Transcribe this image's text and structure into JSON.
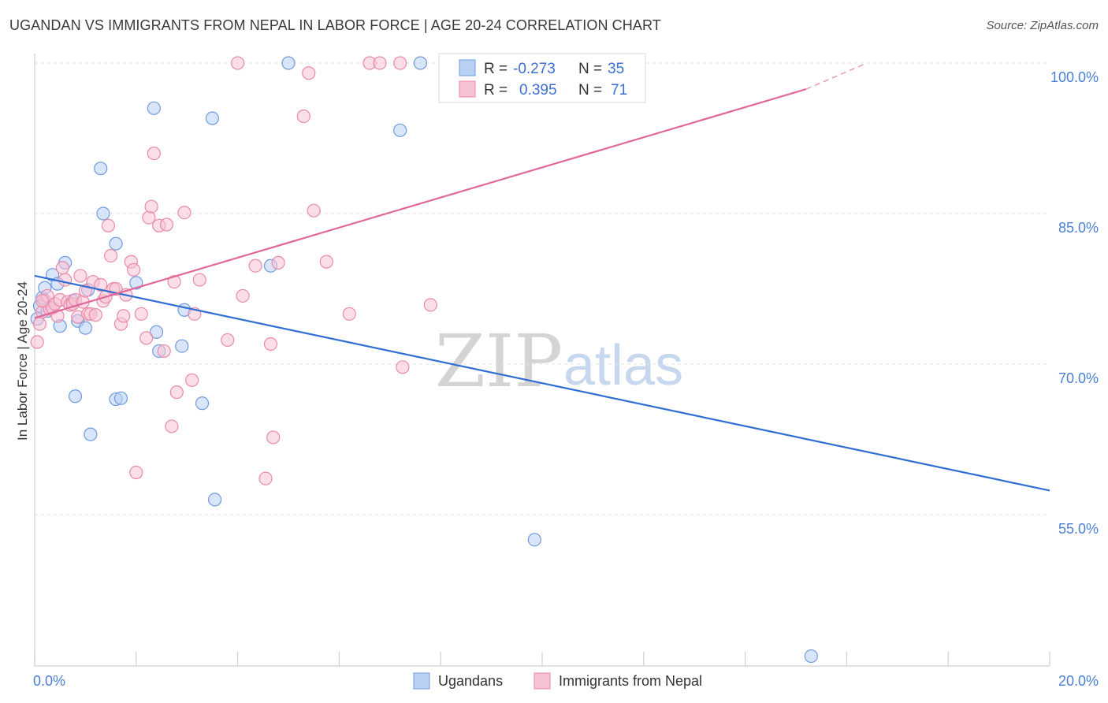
{
  "title": "UGANDAN VS IMMIGRANTS FROM NEPAL IN LABOR FORCE | AGE 20-24 CORRELATION CHART",
  "source": "Source: ZipAtlas.com",
  "watermark": {
    "zip": "ZIP",
    "atlas": "atlas"
  },
  "chart_data": {
    "type": "scatter",
    "title": "UGANDAN VS IMMIGRANTS FROM NEPAL IN LABOR FORCE | AGE 20-24 CORRELATION CHART",
    "xlabel": "",
    "ylabel": "In Labor Force | Age 20-24",
    "xlim": [
      0,
      20
    ],
    "ylim": [
      40,
      101.5
    ],
    "x_tick_labels": [
      {
        "value": 0,
        "label": "0.0%"
      },
      {
        "value": 20,
        "label": "20.0%"
      }
    ],
    "y_tick_labels": [
      {
        "value": 100,
        "label": "100.0%"
      },
      {
        "value": 85,
        "label": "85.0%"
      },
      {
        "value": 70,
        "label": "70.0%"
      },
      {
        "value": 55,
        "label": "55.0%"
      }
    ],
    "grid": true,
    "legend_position": "top-center",
    "series": [
      {
        "name": "Ugandans",
        "color": "#6f9be0",
        "fill": "#b9d0f2",
        "R": "-0.273",
        "N": "35",
        "trend": {
          "x0": 0,
          "y0": 78.8,
          "x1": 20,
          "y1": 57.4
        },
        "points": [
          [
            0.05,
            74.5
          ],
          [
            0.1,
            75.8
          ],
          [
            0.15,
            76.6
          ],
          [
            0.2,
            77.6
          ],
          [
            0.25,
            75.3
          ],
          [
            0.35,
            78.9
          ],
          [
            0.45,
            78.0
          ],
          [
            0.5,
            73.8
          ],
          [
            0.6,
            80.1
          ],
          [
            0.75,
            76.3
          ],
          [
            0.85,
            74.3
          ],
          [
            1.0,
            73.6
          ],
          [
            1.05,
            77.4
          ],
          [
            1.1,
            63.0
          ],
          [
            1.3,
            89.5
          ],
          [
            1.35,
            85.0
          ],
          [
            1.6,
            82.0
          ],
          [
            1.6,
            66.5
          ],
          [
            1.7,
            66.6
          ],
          [
            2.0,
            78.1
          ],
          [
            2.35,
            95.5
          ],
          [
            2.4,
            73.2
          ],
          [
            2.45,
            71.3
          ],
          [
            2.9,
            71.8
          ],
          [
            2.95,
            75.4
          ],
          [
            3.3,
            66.1
          ],
          [
            3.5,
            94.5
          ],
          [
            3.55,
            56.5
          ],
          [
            4.65,
            79.8
          ],
          [
            5.0,
            100.0
          ],
          [
            7.2,
            93.3
          ],
          [
            7.6,
            100.0
          ],
          [
            0.8,
            66.8
          ],
          [
            9.85,
            52.5
          ],
          [
            15.3,
            40.9
          ]
        ]
      },
      {
        "name": "Immigrants from Nepal",
        "color": "#e98aa8",
        "fill": "#f7c3d3",
        "R": "0.395",
        "N": "71",
        "trend": {
          "x0": 0,
          "y0": 74.6,
          "x1": 15.2,
          "y1": 97.4,
          "dash_x1": 16.4,
          "dash_y1": 100.0
        },
        "points": [
          [
            0.05,
            72.2
          ],
          [
            0.1,
            74.0
          ],
          [
            0.15,
            75.2
          ],
          [
            0.2,
            76.3
          ],
          [
            0.25,
            76.8
          ],
          [
            0.3,
            75.5
          ],
          [
            0.35,
            75.6
          ],
          [
            0.4,
            76.0
          ],
          [
            0.45,
            74.8
          ],
          [
            0.5,
            76.4
          ],
          [
            0.55,
            79.6
          ],
          [
            0.6,
            78.4
          ],
          [
            0.65,
            76.2
          ],
          [
            0.7,
            75.9
          ],
          [
            0.75,
            76.0
          ],
          [
            0.8,
            76.4
          ],
          [
            0.85,
            74.7
          ],
          [
            0.9,
            78.8
          ],
          [
            0.95,
            76.2
          ],
          [
            1.0,
            77.3
          ],
          [
            1.05,
            75.0
          ],
          [
            1.1,
            75.0
          ],
          [
            1.15,
            78.2
          ],
          [
            1.2,
            74.9
          ],
          [
            1.3,
            77.9
          ],
          [
            1.35,
            76.3
          ],
          [
            1.4,
            76.7
          ],
          [
            1.45,
            83.8
          ],
          [
            1.5,
            80.8
          ],
          [
            1.55,
            77.5
          ],
          [
            1.6,
            77.5
          ],
          [
            1.7,
            74.0
          ],
          [
            1.75,
            74.8
          ],
          [
            1.8,
            76.9
          ],
          [
            1.9,
            80.2
          ],
          [
            1.95,
            79.4
          ],
          [
            2.1,
            75.0
          ],
          [
            2.2,
            72.6
          ],
          [
            2.25,
            84.6
          ],
          [
            2.3,
            85.7
          ],
          [
            2.35,
            91.0
          ],
          [
            2.45,
            83.8
          ],
          [
            2.55,
            71.3
          ],
          [
            2.6,
            83.9
          ],
          [
            2.7,
            63.8
          ],
          [
            2.75,
            78.2
          ],
          [
            2.8,
            67.2
          ],
          [
            2.95,
            85.1
          ],
          [
            3.1,
            68.4
          ],
          [
            3.15,
            75.0
          ],
          [
            3.25,
            78.4
          ],
          [
            3.8,
            72.4
          ],
          [
            4.0,
            100.0
          ],
          [
            4.1,
            76.8
          ],
          [
            4.35,
            79.8
          ],
          [
            4.55,
            58.6
          ],
          [
            4.65,
            72.0
          ],
          [
            4.7,
            62.7
          ],
          [
            4.8,
            80.1
          ],
          [
            5.3,
            94.7
          ],
          [
            5.4,
            99.0
          ],
          [
            5.5,
            85.3
          ],
          [
            5.75,
            80.2
          ],
          [
            6.2,
            75.0
          ],
          [
            6.6,
            100.0
          ],
          [
            6.8,
            100.0
          ],
          [
            7.25,
            69.7
          ],
          [
            7.2,
            100.0
          ],
          [
            7.8,
            75.9
          ],
          [
            2.0,
            59.2
          ],
          [
            0.15,
            76.3
          ]
        ]
      }
    ]
  },
  "legend": {
    "r_label": "R =",
    "n_label": "N =",
    "entries": [
      {
        "name": "Ugandans",
        "r": "-0.273",
        "n": "35"
      },
      {
        "name": "Immigrants from Nepal",
        "r": "0.395",
        "n": "71"
      }
    ]
  }
}
